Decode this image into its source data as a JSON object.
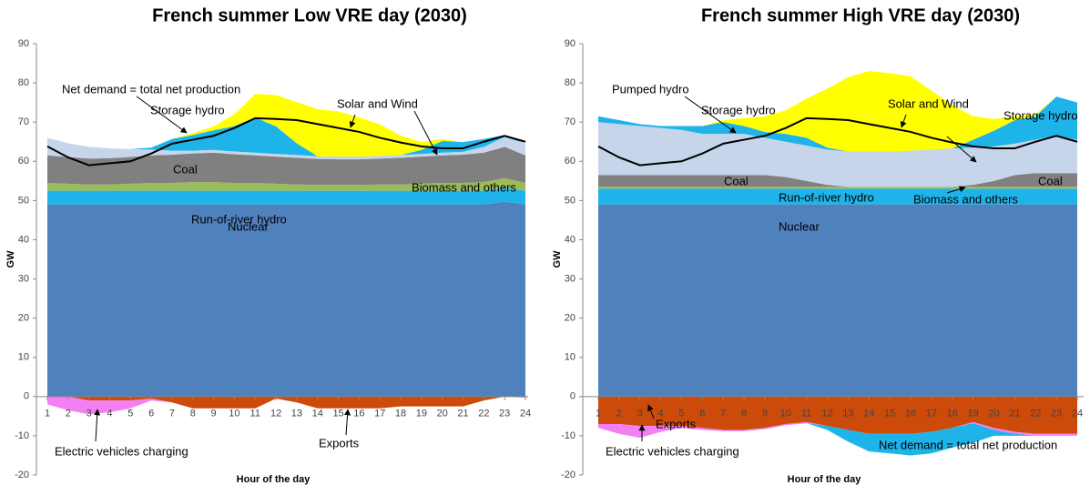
{
  "chart_data": [
    {
      "type": "stacked-area",
      "title": "French summer Low VRE day (2030)",
      "xlabel": "Hour of the day",
      "ylabel": "GW",
      "x": [
        1,
        2,
        3,
        4,
        5,
        6,
        7,
        8,
        9,
        10,
        11,
        12,
        13,
        14,
        15,
        16,
        17,
        18,
        19,
        20,
        21,
        22,
        23,
        24
      ],
      "xlim": [
        1,
        24
      ],
      "xticks": [
        1,
        2,
        3,
        4,
        5,
        6,
        7,
        8,
        9,
        10,
        11,
        12,
        13,
        14,
        15,
        16,
        17,
        18,
        19,
        20,
        21,
        22,
        23,
        24
      ],
      "ylim": [
        -20,
        90
      ],
      "yticks": [
        -20,
        -10,
        0,
        10,
        20,
        30,
        40,
        50,
        60,
        70,
        80,
        90
      ],
      "grid": false,
      "series": [
        {
          "name": "Nuclear",
          "color": "#4f81bd",
          "values": [
            49,
            49,
            49,
            49,
            49,
            49,
            49,
            49,
            49,
            49,
            49,
            49,
            49,
            49,
            49,
            49,
            49,
            49,
            49,
            49,
            49,
            49,
            49.7,
            49
          ]
        },
        {
          "name": "Run-of-river hydro",
          "color": "#1fb4e9",
          "values": [
            3.5,
            3.5,
            3.5,
            3.5,
            3.5,
            3.5,
            3.5,
            3.5,
            3.5,
            3.5,
            3.5,
            3.5,
            3.5,
            3.5,
            3.5,
            3.5,
            3.5,
            3.5,
            3.5,
            3.5,
            3.5,
            3.5,
            3.5,
            3.5
          ]
        },
        {
          "name": "Biomass and others",
          "color": "#9bbb59",
          "values": [
            2,
            1.8,
            1.6,
            1.6,
            1.8,
            2,
            2,
            2.2,
            2.2,
            2,
            2,
            1.8,
            1.6,
            1.5,
            1.5,
            1.5,
            1.6,
            1.6,
            1.8,
            2,
            2,
            2.2,
            2.5,
            2
          ]
        },
        {
          "name": "Coal",
          "color": "#808080",
          "values": [
            7,
            6.8,
            6.6,
            6.7,
            6.8,
            7,
            7.2,
            7.3,
            7.5,
            7.3,
            7,
            6.9,
            6.8,
            6.6,
            6.5,
            6.5,
            6.6,
            6.8,
            6.9,
            7,
            7.2,
            7.5,
            8,
            7
          ]
        },
        {
          "color": "#c6d5ea",
          "values": [
            4.5,
            3.5,
            3,
            2.5,
            2,
            1.5,
            1,
            0.7,
            0.7,
            0.7,
            0.7,
            0.7,
            0.7,
            0.7,
            0.7,
            0.7,
            0.7,
            0.7,
            0.7,
            0.7,
            0.7,
            1.5,
            2.5,
            3
          ]
        },
        {
          "name": "Storage hydro",
          "color": "#1fb4e9",
          "values": [
            0,
            0,
            0,
            0,
            0,
            0.5,
            3,
            4,
            5,
            6.5,
            9,
            7,
            3,
            0,
            0,
            0,
            0,
            0,
            1,
            3,
            2.5,
            2,
            0.5,
            0
          ]
        },
        {
          "name": "Solar and Wind",
          "color": "#ffff00",
          "values": [
            0,
            0,
            0,
            0,
            0,
            0,
            0,
            0.5,
            1,
            3,
            6,
            8,
            10.5,
            12,
            11.5,
            10,
            8,
            5,
            2,
            0.5,
            0,
            0,
            0,
            0
          ]
        },
        {
          "name": "Exports",
          "color": "#cc4a0a",
          "values": [
            0,
            0,
            -1,
            -1,
            -1,
            -0.5,
            -1.5,
            -3,
            -3,
            -3,
            -3,
            -0.5,
            -1.5,
            -3,
            -3,
            -3,
            -3,
            -2.5,
            -2.5,
            -2.5,
            -2.5,
            -1,
            0,
            0
          ]
        },
        {
          "name": "Electric vehicles charging",
          "color": "#f37ff3",
          "values": [
            -2,
            -3.5,
            -3.5,
            -3,
            -2,
            -0.5,
            0,
            0,
            0,
            0,
            0,
            0,
            0,
            0,
            0,
            0,
            0,
            0,
            0,
            0,
            0,
            0,
            0,
            -0.3
          ]
        },
        {
          "name": "Net demand = total net production",
          "type": "line",
          "color": "#000000",
          "values": [
            63.8,
            61,
            59,
            59.5,
            60,
            62,
            64.5,
            65.5,
            66.5,
            68.5,
            71,
            70.8,
            70.5,
            69.5,
            68.5,
            67.5,
            66,
            64.8,
            63.8,
            63.3,
            63.3,
            65,
            66.5,
            65
          ]
        }
      ]
    },
    {
      "type": "stacked-area",
      "title": "French summer High VRE day (2030)",
      "xlabel": "Hour of the day",
      "ylabel": "GW",
      "x": [
        1,
        2,
        3,
        4,
        5,
        6,
        7,
        8,
        9,
        10,
        11,
        12,
        13,
        14,
        15,
        16,
        17,
        18,
        19,
        20,
        21,
        22,
        23,
        24
      ],
      "xlim": [
        1,
        24
      ],
      "xticks": [
        1,
        2,
        3,
        4,
        5,
        6,
        7,
        8,
        9,
        10,
        11,
        12,
        13,
        14,
        15,
        16,
        17,
        18,
        19,
        20,
        21,
        22,
        23,
        24
      ],
      "ylim": [
        -20,
        90
      ],
      "yticks": [
        -20,
        -10,
        0,
        10,
        20,
        30,
        40,
        50,
        60,
        70,
        80,
        90
      ],
      "grid": false,
      "series": [
        {
          "name": "Nuclear",
          "color": "#4f81bd",
          "values": [
            49,
            49,
            49,
            49,
            49,
            49,
            49,
            49,
            49,
            49,
            49,
            49,
            49,
            49,
            49,
            49,
            49,
            49,
            49,
            49,
            49,
            49,
            49,
            49
          ]
        },
        {
          "name": "Run-of-river hydro",
          "color": "#1fb4e9",
          "values": [
            4,
            4,
            4,
            4,
            4,
            4,
            4,
            4,
            4,
            4,
            4,
            4,
            4,
            4,
            4,
            4,
            4,
            4,
            4,
            4,
            4,
            4,
            4,
            4
          ]
        },
        {
          "name": "Biomass and others",
          "color": "#9bbb59",
          "values": [
            0.5,
            0.5,
            0.5,
            0.5,
            0.5,
            0.5,
            0.5,
            0.5,
            0.5,
            0.5,
            0.5,
            0.5,
            0.5,
            0.5,
            0.5,
            0.5,
            0.5,
            0.5,
            0.5,
            0.5,
            0.5,
            0.5,
            0.5,
            0.5
          ]
        },
        {
          "name": "Coal",
          "color": "#808080",
          "values": [
            3,
            3,
            3,
            3,
            3,
            3,
            3,
            3,
            3,
            2.5,
            1.5,
            0.5,
            0,
            0,
            0,
            0,
            0,
            0,
            0.5,
            1.5,
            3,
            3.5,
            3.5,
            3.5
          ]
        },
        {
          "color": "#c6d5ea",
          "values": [
            13.5,
            13,
            12.5,
            12,
            11.5,
            10.5,
            10.5,
            10.5,
            9.5,
            9,
            9,
            9,
            9,
            9,
            9,
            9.2,
            9.5,
            9.8,
            9.5,
            8.8,
            8,
            8.5,
            9.5,
            8.5
          ]
        },
        {
          "name": "Storage hydro",
          "color": "#1fb4e9",
          "values": [
            1.5,
            1,
            0.5,
            0.5,
            1,
            2,
            3,
            2,
            1.5,
            2,
            2,
            0.5,
            0,
            0,
            0,
            0,
            0,
            0,
            2,
            4,
            6,
            6,
            10,
            9.5
          ]
        },
        {
          "name": "Solar and Wind",
          "color": "#ffff00",
          "values": [
            0,
            0,
            0,
            0,
            0,
            0,
            0.5,
            2,
            4,
            6,
            10,
            15,
            19,
            20.5,
            20,
            19,
            15,
            11,
            6,
            3,
            1,
            0.5,
            0,
            0
          ]
        },
        {
          "name": "Exports",
          "color": "#cc4a0a",
          "values": [
            -7,
            -7,
            -7.5,
            -7.5,
            -7.5,
            -8,
            -8.5,
            -8.5,
            -8,
            -7,
            -6.5,
            -7.5,
            -8.5,
            -9.5,
            -9.5,
            -9.5,
            -9,
            -8,
            -6.5,
            -8,
            -9,
            -9.5,
            -9.5,
            -9.5
          ]
        },
        {
          "name": "Electric vehicles charging",
          "color": "#f37ff3",
          "values": [
            -1,
            -2.5,
            -3,
            -1.5,
            -0.5,
            -0.5,
            -0.3,
            -0.3,
            -0.3,
            -0.3,
            -0.3,
            0,
            0,
            0,
            0,
            0,
            0,
            0,
            -0.3,
            -0.5,
            -0.5,
            -0.5,
            -0.5,
            -0.5
          ]
        },
        {
          "name": "Pumped hydro",
          "color": "#1fb4e9",
          "values": [
            0,
            0,
            0,
            0,
            0,
            0,
            0,
            0,
            0,
            0,
            0,
            -1,
            -3,
            -4.5,
            -5,
            -5.5,
            -5.5,
            -5,
            -5,
            -1.5,
            -0.5,
            0,
            0,
            0
          ]
        },
        {
          "name": "Net demand = total net production",
          "type": "line",
          "color": "#000000",
          "values": [
            63.8,
            61,
            59,
            59.5,
            60,
            62,
            64.5,
            65.5,
            66.5,
            68.5,
            71,
            70.8,
            70.5,
            69.5,
            68.5,
            67.5,
            66,
            64.8,
            63.8,
            63.3,
            63.3,
            65,
            66.5,
            65
          ]
        }
      ]
    }
  ]
}
